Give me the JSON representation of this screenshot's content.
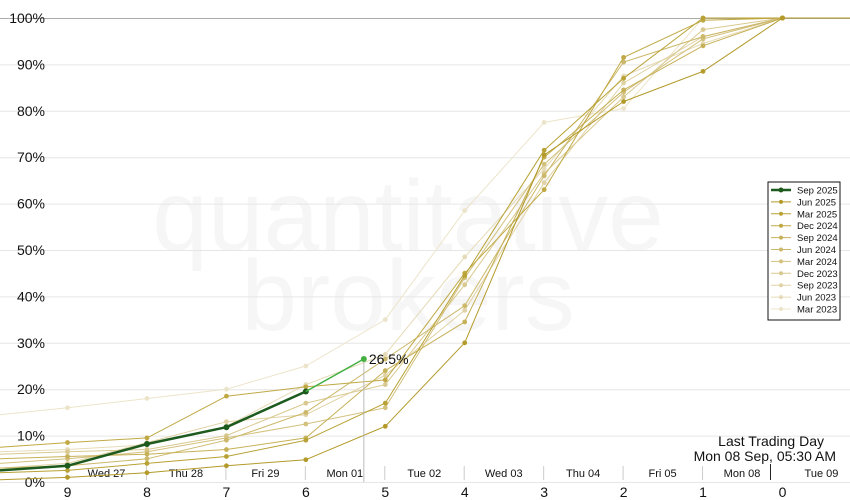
{
  "watermark": [
    "quantitative",
    "brokers"
  ],
  "annotation": {
    "line1": "Last Trading Day",
    "line2": "Mon 08 Sep, 05:30 AM"
  },
  "current_label": "26.5%",
  "chart_data": {
    "type": "line",
    "title": "",
    "xlabel": "",
    "ylabel": "",
    "xlim": [
      9.85,
      -0.85
    ],
    "ylim": [
      0,
      100
    ],
    "x_ticks": [
      9,
      8,
      7,
      6,
      5,
      4,
      3,
      2,
      1,
      0
    ],
    "y_ticks": [
      "0%",
      "10%",
      "20%",
      "30%",
      "40%",
      "50%",
      "60%",
      "70%",
      "80%",
      "90%",
      "100%"
    ],
    "day_labels": [
      "Wed 27",
      "Thu 28",
      "Fri 29",
      "Mon 01",
      "Tue 02",
      "Wed 03",
      "Thu 04",
      "Fri 05",
      "Mon 08",
      "Tue 09"
    ],
    "grid": "horizontal",
    "legend_position": "right",
    "current_point": {
      "x": 5.27,
      "y": 26.5
    },
    "series": [
      {
        "name": "Sep 2025",
        "color": "#1d5a1d",
        "points": [
          [
            9.85,
            2.5
          ],
          [
            9,
            3.5
          ],
          [
            8,
            8.2
          ],
          [
            7,
            11.8
          ],
          [
            6,
            19.5
          ]
        ],
        "tail": [
          [
            6,
            19.5
          ],
          [
            5.27,
            26.5
          ]
        ]
      },
      {
        "name": "Jun 2025",
        "color": "#b39a2a",
        "points": [
          [
            9.85,
            0.5
          ],
          [
            9,
            1
          ],
          [
            8,
            2
          ],
          [
            7,
            3.5
          ],
          [
            6,
            4.8
          ],
          [
            5,
            12
          ],
          [
            4,
            30
          ],
          [
            3,
            70.5
          ],
          [
            2,
            82
          ],
          [
            1,
            88.5
          ],
          [
            0,
            100
          ],
          [
            -0.85,
            100
          ]
        ]
      },
      {
        "name": "Mar 2025",
        "color": "#b8a235",
        "points": [
          [
            9.85,
            2
          ],
          [
            9,
            2.5
          ],
          [
            8,
            4
          ],
          [
            7,
            5.5
          ],
          [
            6,
            9
          ],
          [
            5,
            17
          ],
          [
            4,
            44.5
          ],
          [
            3,
            71.5
          ],
          [
            2,
            87
          ],
          [
            1,
            100
          ],
          [
            0,
            100
          ],
          [
            -0.85,
            100
          ]
        ]
      },
      {
        "name": "Dec 2024",
        "color": "#c0a945",
        "points": [
          [
            9.85,
            7.5
          ],
          [
            9,
            8.5
          ],
          [
            8,
            9.5
          ],
          [
            7,
            18.5
          ],
          [
            6,
            20.5
          ],
          [
            5,
            22
          ],
          [
            4,
            45
          ],
          [
            3,
            63
          ],
          [
            2,
            91.5
          ],
          [
            1,
            99.5
          ],
          [
            0,
            100
          ],
          [
            -0.85,
            100
          ]
        ]
      },
      {
        "name": "Sep 2024",
        "color": "#c6b158",
        "points": [
          [
            9.85,
            5
          ],
          [
            9,
            5.5
          ],
          [
            8,
            6
          ],
          [
            7,
            7
          ],
          [
            6,
            9.5
          ],
          [
            5,
            24
          ],
          [
            4,
            34.5
          ],
          [
            3,
            70
          ],
          [
            2,
            84.5
          ],
          [
            1,
            94
          ],
          [
            0,
            100
          ],
          [
            -0.85,
            100
          ]
        ]
      },
      {
        "name": "Jun 2024",
        "color": "#ccb86a",
        "points": [
          [
            9.85,
            3
          ],
          [
            9,
            3.5
          ],
          [
            8,
            5
          ],
          [
            7,
            9
          ],
          [
            6,
            15
          ],
          [
            5,
            26.5
          ],
          [
            4,
            38
          ],
          [
            3,
            66
          ],
          [
            2,
            90.5
          ],
          [
            1,
            96
          ],
          [
            0,
            100
          ],
          [
            -0.85,
            100
          ]
        ]
      },
      {
        "name": "Mar 2024",
        "color": "#d3c17e",
        "points": [
          [
            9.85,
            4
          ],
          [
            9,
            5
          ],
          [
            8,
            6.5
          ],
          [
            7,
            9.5
          ],
          [
            6,
            12.5
          ],
          [
            5,
            16
          ],
          [
            4,
            44
          ],
          [
            3,
            68.5
          ],
          [
            2,
            84
          ],
          [
            1,
            95.5
          ],
          [
            0,
            100
          ],
          [
            -0.85,
            100
          ]
        ]
      },
      {
        "name": "Dec 2023",
        "color": "#d9c990",
        "points": [
          [
            9.85,
            6
          ],
          [
            9,
            6.5
          ],
          [
            8,
            7
          ],
          [
            7,
            10
          ],
          [
            6,
            17
          ],
          [
            5,
            21
          ],
          [
            4,
            42.5
          ],
          [
            3,
            66.5
          ],
          [
            2,
            83
          ],
          [
            1,
            97.5
          ],
          [
            0,
            100
          ],
          [
            -0.85,
            100
          ]
        ]
      },
      {
        "name": "Sep 2023",
        "color": "#e0d2a5",
        "points": [
          [
            9.85,
            3
          ],
          [
            9,
            4
          ],
          [
            8,
            8.5
          ],
          [
            7,
            13
          ],
          [
            6,
            14.5
          ],
          [
            5,
            23
          ],
          [
            4,
            37
          ],
          [
            3,
            64.5
          ],
          [
            2,
            86
          ],
          [
            1,
            96
          ],
          [
            0,
            100
          ],
          [
            -0.85,
            100
          ]
        ]
      },
      {
        "name": "Jun 2023",
        "color": "#e6dbb8",
        "points": [
          [
            9.85,
            6.5
          ],
          [
            9,
            7
          ],
          [
            8,
            8
          ],
          [
            7,
            12
          ],
          [
            6,
            21
          ],
          [
            5,
            27.5
          ],
          [
            4,
            48.5
          ],
          [
            3,
            67.5
          ],
          [
            2,
            87.5
          ],
          [
            1,
            94.5
          ],
          [
            0,
            100
          ],
          [
            -0.85,
            100
          ]
        ]
      },
      {
        "name": "Mar 2023",
        "color": "#ece4ca",
        "points": [
          [
            9.85,
            14.5
          ],
          [
            9,
            16
          ],
          [
            8,
            18
          ],
          [
            7,
            20
          ],
          [
            6,
            25
          ],
          [
            5,
            35
          ],
          [
            4,
            58.5
          ],
          [
            3,
            77.5
          ],
          [
            2,
            80.5
          ],
          [
            1,
            100
          ],
          [
            0,
            100
          ],
          [
            -0.85,
            100
          ]
        ]
      }
    ]
  }
}
